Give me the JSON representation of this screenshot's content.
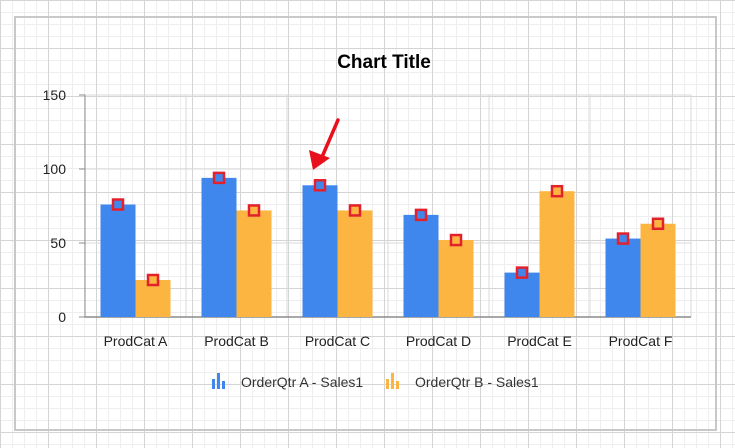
{
  "colors": {
    "series_a": "#3f87ec",
    "series_b": "#fdb541",
    "marker": "#e3212c",
    "axis": "#8c8c8c",
    "gridline": "#d9d9d9",
    "arrow": "#e8101a"
  },
  "icons": {
    "legend": "column-chart-icon",
    "pointer": "red-arrow-icon"
  },
  "chart_data": {
    "type": "bar",
    "title": "Chart Title",
    "categories": [
      "ProdCat A",
      "ProdCat B",
      "ProdCat C",
      "ProdCat D",
      "ProdCat E",
      "ProdCat F"
    ],
    "series": [
      {
        "name": "OrderQtr A - Sales1",
        "values": [
          76,
          94,
          89,
          69,
          30,
          53
        ]
      },
      {
        "name": "OrderQtr B - Sales1",
        "values": [
          25,
          72,
          72,
          52,
          85,
          63
        ]
      }
    ],
    "ylim": [
      0,
      150
    ],
    "yticks": [
      "0",
      "50",
      "100",
      "150"
    ],
    "grid": true,
    "legend_position": "bottom",
    "markers": "square markers on every bar",
    "arrow_points_to": "ProdCat C / OrderQtr A - Sales1"
  }
}
